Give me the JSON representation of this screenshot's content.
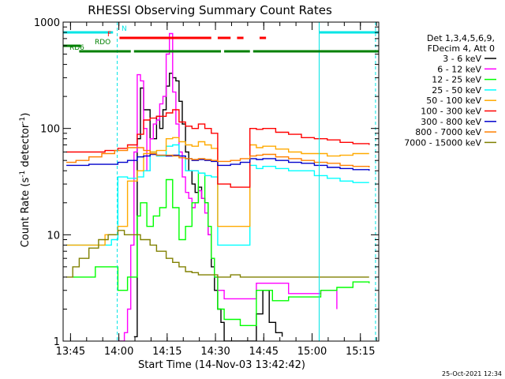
{
  "chart_data": {
    "type": "line",
    "title": "RHESSI Observing Summary Count Rates",
    "xlabel": "Start Time (14-Nov-03 13:42:42)",
    "ylabel_parts": [
      "Count Rate (s",
      "-1",
      " detector",
      "-1",
      ")"
    ],
    "yscale": "log",
    "xlim": [
      0,
      98
    ],
    "ylim": [
      1,
      1000
    ],
    "x_unit": "minutes after 13:42:42",
    "x_ticks": [
      {
        "x": 2.3,
        "label": "13:45"
      },
      {
        "x": 17.3,
        "label": "14:00"
      },
      {
        "x": 32.3,
        "label": "14:15"
      },
      {
        "x": 47.3,
        "label": "14:30"
      },
      {
        "x": 62.3,
        "label": "14:45"
      },
      {
        "x": 77.3,
        "label": "15:00"
      },
      {
        "x": 92.3,
        "label": "15:15"
      }
    ],
    "y_ticks": [
      {
        "y": 1,
        "label": "1"
      },
      {
        "y": 10,
        "label": "10"
      },
      {
        "y": 100,
        "label": "100"
      },
      {
        "y": 1000,
        "label": "1000"
      }
    ],
    "legend_header": [
      "Det 1,3,4,5,6,9,",
      "FDecim 4, Att 0"
    ],
    "legend_position": "right",
    "series": [
      {
        "name": "3 - 6 keV",
        "color": "#000000",
        "points": [
          [
            22,
            1.1
          ],
          [
            23,
            80
          ],
          [
            24,
            240
          ],
          [
            25,
            150
          ],
          [
            27,
            80
          ],
          [
            29,
            130
          ],
          [
            30,
            100
          ],
          [
            31,
            150
          ],
          [
            32,
            250
          ],
          [
            33,
            330
          ],
          [
            34,
            300
          ],
          [
            35,
            280
          ],
          [
            36,
            180
          ],
          [
            37,
            110
          ],
          [
            38,
            60
          ],
          [
            39,
            40
          ],
          [
            40,
            30
          ],
          [
            41,
            25
          ],
          [
            42,
            28
          ],
          [
            43,
            22
          ],
          [
            44,
            20
          ],
          [
            45,
            10
          ],
          [
            46,
            5
          ],
          [
            47,
            3
          ],
          [
            48,
            2
          ],
          [
            49,
            1.5
          ],
          [
            50,
            1
          ],
          [
            55,
            1
          ],
          [
            60,
            1.8
          ],
          [
            62,
            3
          ],
          [
            64,
            1.5
          ],
          [
            66,
            1.2
          ],
          [
            68,
            1.1
          ]
        ]
      },
      {
        "name": "6 - 12 keV",
        "color": "#ff00ff",
        "points": [
          [
            17,
            1
          ],
          [
            19,
            1.2
          ],
          [
            20,
            2
          ],
          [
            21,
            8
          ],
          [
            22,
            60
          ],
          [
            23,
            320
          ],
          [
            24,
            280
          ],
          [
            25,
            100
          ],
          [
            26,
            40
          ],
          [
            27,
            80
          ],
          [
            28,
            110
          ],
          [
            29,
            120
          ],
          [
            30,
            170
          ],
          [
            31,
            200
          ],
          [
            32,
            500
          ],
          [
            33,
            780
          ],
          [
            34,
            220
          ],
          [
            35,
            110
          ],
          [
            36,
            60
          ],
          [
            37,
            35
          ],
          [
            38,
            25
          ],
          [
            39,
            22
          ],
          [
            40,
            18
          ],
          [
            41,
            20
          ],
          [
            42,
            26
          ],
          [
            43,
            22
          ],
          [
            44,
            16
          ],
          [
            45,
            10
          ],
          [
            46,
            6
          ],
          [
            47,
            4
          ],
          [
            48,
            3
          ],
          [
            50,
            2.5
          ],
          [
            60,
            3.5
          ],
          [
            70,
            2.8
          ],
          [
            80,
            3
          ],
          [
            85,
            2
          ]
        ]
      },
      {
        "name": "12 - 25 keV",
        "color": "#00ff00",
        "points": [
          [
            3,
            4
          ],
          [
            10,
            5
          ],
          [
            17,
            3
          ],
          [
            20,
            4
          ],
          [
            23,
            15
          ],
          [
            24,
            20
          ],
          [
            26,
            12
          ],
          [
            28,
            15
          ],
          [
            30,
            18
          ],
          [
            32,
            33
          ],
          [
            34,
            18
          ],
          [
            36,
            9
          ],
          [
            38,
            12
          ],
          [
            40,
            20
          ],
          [
            42,
            38
          ],
          [
            44,
            20
          ],
          [
            45,
            12
          ],
          [
            46,
            6
          ],
          [
            47,
            4
          ],
          [
            48,
            2
          ],
          [
            50,
            1.6
          ],
          [
            55,
            1.4
          ],
          [
            60,
            3
          ],
          [
            65,
            2.4
          ],
          [
            70,
            2.6
          ],
          [
            80,
            3
          ],
          [
            85,
            3.2
          ],
          [
            90,
            3.6
          ],
          [
            95,
            3.5
          ]
        ]
      },
      {
        "name": "25 - 50 keV",
        "color": "#00ffff",
        "points": [
          [
            1,
            8
          ],
          [
            8,
            8
          ],
          [
            15,
            9
          ],
          [
            17,
            35
          ],
          [
            20,
            34
          ],
          [
            23,
            35
          ],
          [
            25,
            40
          ],
          [
            27,
            60
          ],
          [
            29,
            55
          ],
          [
            32,
            68
          ],
          [
            34,
            70
          ],
          [
            36,
            55
          ],
          [
            38,
            40
          ],
          [
            40,
            40
          ],
          [
            42,
            38
          ],
          [
            44,
            36
          ],
          [
            46,
            35
          ],
          [
            48,
            8
          ],
          [
            52,
            8
          ],
          [
            55,
            8
          ],
          [
            58,
            45
          ],
          [
            60,
            42
          ],
          [
            62,
            44
          ],
          [
            66,
            42
          ],
          [
            70,
            40
          ],
          [
            74,
            40
          ],
          [
            78,
            36
          ],
          [
            82,
            34
          ],
          [
            86,
            32
          ],
          [
            90,
            31
          ],
          [
            95,
            31
          ]
        ]
      },
      {
        "name": "50 - 100 keV",
        "color": "#ffaa00",
        "points": [
          [
            1,
            8
          ],
          [
            8,
            8
          ],
          [
            13,
            10
          ],
          [
            17,
            12
          ],
          [
            20,
            32
          ],
          [
            23,
            40
          ],
          [
            25,
            58
          ],
          [
            27,
            60
          ],
          [
            29,
            62
          ],
          [
            32,
            80
          ],
          [
            34,
            82
          ],
          [
            36,
            75
          ],
          [
            38,
            70
          ],
          [
            40,
            68
          ],
          [
            42,
            75
          ],
          [
            44,
            70
          ],
          [
            46,
            65
          ],
          [
            48,
            12
          ],
          [
            52,
            12
          ],
          [
            55,
            12
          ],
          [
            58,
            70
          ],
          [
            60,
            66
          ],
          [
            62,
            68
          ],
          [
            66,
            64
          ],
          [
            70,
            60
          ],
          [
            74,
            58
          ],
          [
            78,
            58
          ],
          [
            82,
            55
          ],
          [
            86,
            56
          ],
          [
            90,
            58
          ],
          [
            95,
            58
          ]
        ]
      },
      {
        "name": "100 - 300 keV",
        "color": "#ff0000",
        "points": [
          [
            1,
            60
          ],
          [
            8,
            60
          ],
          [
            13,
            62
          ],
          [
            17,
            65
          ],
          [
            20,
            70
          ],
          [
            23,
            88
          ],
          [
            25,
            120
          ],
          [
            27,
            125
          ],
          [
            29,
            130
          ],
          [
            32,
            140
          ],
          [
            34,
            150
          ],
          [
            36,
            115
          ],
          [
            38,
            105
          ],
          [
            40,
            100
          ],
          [
            42,
            110
          ],
          [
            44,
            100
          ],
          [
            46,
            90
          ],
          [
            48,
            30
          ],
          [
            52,
            28
          ],
          [
            55,
            28
          ],
          [
            58,
            100
          ],
          [
            60,
            98
          ],
          [
            62,
            100
          ],
          [
            66,
            92
          ],
          [
            70,
            88
          ],
          [
            74,
            82
          ],
          [
            78,
            80
          ],
          [
            82,
            78
          ],
          [
            86,
            74
          ],
          [
            90,
            72
          ],
          [
            95,
            70
          ]
        ]
      },
      {
        "name": "300 - 800 keV",
        "color": "#0000cc",
        "points": [
          [
            1,
            45
          ],
          [
            8,
            46
          ],
          [
            13,
            46
          ],
          [
            17,
            48
          ],
          [
            20,
            50
          ],
          [
            23,
            54
          ],
          [
            25,
            55
          ],
          [
            27,
            57
          ],
          [
            29,
            56
          ],
          [
            32,
            55
          ],
          [
            34,
            56
          ],
          [
            36,
            55
          ],
          [
            38,
            52
          ],
          [
            40,
            50
          ],
          [
            42,
            51
          ],
          [
            44,
            50
          ],
          [
            46,
            49
          ],
          [
            48,
            45
          ],
          [
            52,
            46
          ],
          [
            55,
            48
          ],
          [
            58,
            52
          ],
          [
            60,
            51
          ],
          [
            62,
            52
          ],
          [
            66,
            50
          ],
          [
            70,
            48
          ],
          [
            74,
            47
          ],
          [
            78,
            45
          ],
          [
            82,
            43
          ],
          [
            86,
            42
          ],
          [
            90,
            41
          ],
          [
            95,
            40
          ]
        ]
      },
      {
        "name": "800 - 7000 keV",
        "color": "#ff8000",
        "points": [
          [
            1,
            48
          ],
          [
            4,
            50
          ],
          [
            8,
            54
          ],
          [
            12,
            58
          ],
          [
            16,
            62
          ],
          [
            20,
            66
          ],
          [
            23,
            66
          ],
          [
            25,
            62
          ],
          [
            27,
            58
          ],
          [
            29,
            56
          ],
          [
            32,
            56
          ],
          [
            34,
            55
          ],
          [
            36,
            53
          ],
          [
            38,
            52
          ],
          [
            40,
            51
          ],
          [
            42,
            52
          ],
          [
            44,
            51
          ],
          [
            46,
            50
          ],
          [
            48,
            49
          ],
          [
            52,
            50
          ],
          [
            55,
            52
          ],
          [
            58,
            55
          ],
          [
            60,
            56
          ],
          [
            62,
            57
          ],
          [
            66,
            54
          ],
          [
            70,
            52
          ],
          [
            74,
            50
          ],
          [
            78,
            48
          ],
          [
            82,
            47
          ],
          [
            86,
            45
          ],
          [
            90,
            44
          ],
          [
            95,
            43
          ]
        ]
      },
      {
        "name": "7000 - 15000 keV",
        "color": "#808000",
        "points": [
          [
            1,
            4
          ],
          [
            3,
            5
          ],
          [
            5,
            6
          ],
          [
            8,
            7.5
          ],
          [
            11,
            9
          ],
          [
            14,
            10
          ],
          [
            17,
            11
          ],
          [
            19,
            10
          ],
          [
            21,
            10
          ],
          [
            24,
            9
          ],
          [
            27,
            8
          ],
          [
            29,
            7
          ],
          [
            32,
            6
          ],
          [
            34,
            5.5
          ],
          [
            36,
            5
          ],
          [
            38,
            4.5
          ],
          [
            40,
            4.4
          ],
          [
            42,
            4.2
          ],
          [
            46,
            4.2
          ],
          [
            48,
            4
          ],
          [
            52,
            4.2
          ],
          [
            55,
            4
          ],
          [
            60,
            4
          ],
          [
            65,
            4
          ],
          [
            70,
            4
          ],
          [
            75,
            4
          ],
          [
            80,
            4
          ],
          [
            85,
            4
          ],
          [
            90,
            4
          ],
          [
            95,
            4
          ]
        ]
      }
    ],
    "flags": [
      {
        "label": "N",
        "color": "#00e5e5",
        "segments": [
          [
            0,
            15.5
          ],
          [
            79.5,
            98
          ]
        ]
      },
      {
        "label": "F",
        "color": "#ff0000",
        "segments": [
          [
            17.5,
            46
          ],
          [
            48,
            52
          ],
          [
            54,
            56
          ],
          [
            61,
            63
          ]
        ]
      },
      {
        "label": "RDO",
        "color": "#008000",
        "segments": [
          [
            0,
            5.5
          ]
        ]
      },
      {
        "label": "RD6",
        "color": "#008000",
        "segments": [
          [
            5,
            21
          ],
          [
            22,
            49
          ],
          [
            50,
            58
          ],
          [
            59,
            98
          ]
        ]
      }
    ],
    "vertical_markers": [
      {
        "x": 16.8,
        "color": "#00e5e5",
        "style": "dashed"
      },
      {
        "x": 79.5,
        "color": "#00e5e5",
        "style": "solid"
      },
      {
        "x": 97,
        "color": "#00e5e5",
        "style": "dashed"
      }
    ],
    "annotation": "25-Oct-2021 12:34"
  }
}
